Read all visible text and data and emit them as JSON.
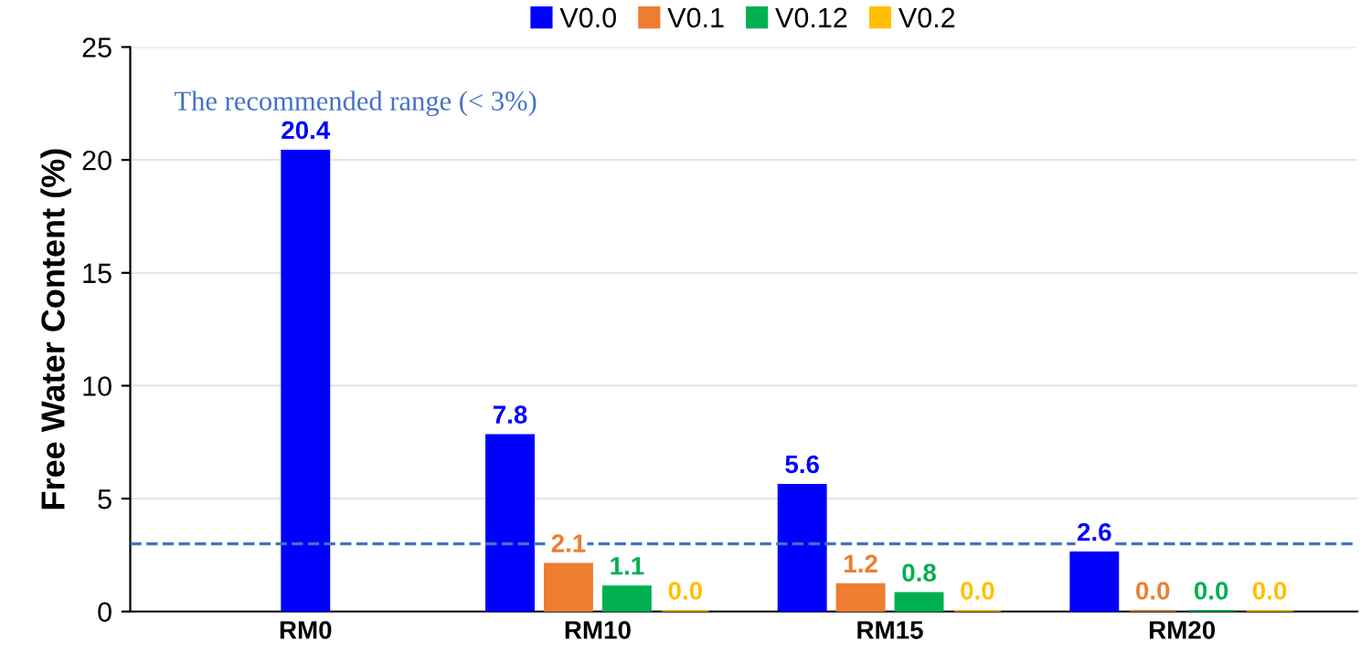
{
  "chart_data": {
    "type": "bar",
    "ylabel": "Free Water Content (%)",
    "categories": [
      "RM0",
      "RM10",
      "RM15",
      "RM20"
    ],
    "series": [
      {
        "name": "V0.0",
        "color": "#0000ff",
        "values": [
          20.4,
          7.8,
          5.6,
          2.6
        ],
        "value_labels": [
          "20.4",
          "7.8",
          "5.6",
          "2.6"
        ]
      },
      {
        "name": "V0.1",
        "color": "#ed7d31",
        "values": [
          null,
          2.1,
          1.2,
          0.0
        ],
        "value_labels": [
          null,
          "2.1",
          "1.2",
          "0.0"
        ]
      },
      {
        "name": "V0.12",
        "color": "#00b050",
        "values": [
          null,
          1.1,
          0.8,
          0.0
        ],
        "value_labels": [
          null,
          "1.1",
          "0.8",
          "0.0"
        ]
      },
      {
        "name": "V0.2",
        "color": "#ffc000",
        "values": [
          null,
          0.0,
          0.0,
          0.0
        ],
        "value_labels": [
          null,
          "0.0",
          "0.0",
          "0.0"
        ]
      }
    ],
    "ylim": [
      0,
      25
    ],
    "yticks": [
      0,
      5,
      10,
      15,
      20,
      25
    ],
    "ref_lines": [
      {
        "axis": "y",
        "value": 3,
        "label": "The recommended range (< 3%)",
        "color": "#4472c4",
        "line_style": "dashed"
      }
    ],
    "grid": "y",
    "legend": "top"
  }
}
